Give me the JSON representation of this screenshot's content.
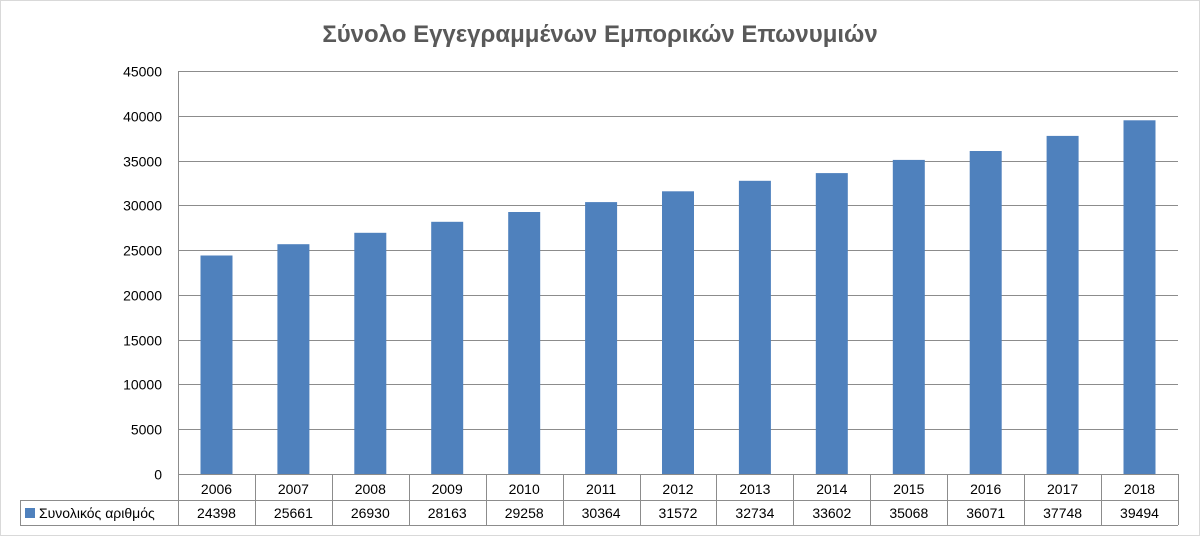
{
  "chart_data": {
    "type": "bar",
    "title": "Σύνολο Εγγεγραμμένων Εμπορικών Επωνυμιών",
    "categories": [
      "2006",
      "2007",
      "2008",
      "2009",
      "2010",
      "2011",
      "2012",
      "2013",
      "2014",
      "2015",
      "2016",
      "2017",
      "2018"
    ],
    "series": [
      {
        "name": "Συνολικός αριθμός",
        "values": [
          24398,
          25661,
          26930,
          28163,
          29258,
          30364,
          31572,
          32734,
          33602,
          35068,
          36071,
          37748,
          39494
        ]
      }
    ],
    "ylim": [
      0,
      45000
    ],
    "yticks": [
      "0",
      "5000",
      "10000",
      "15000",
      "20000",
      "25000",
      "30000",
      "35000",
      "40000",
      "45000"
    ],
    "grid": true,
    "legend": "data-table",
    "colors": {
      "bar": "#4f81bd",
      "grid": "#8c8c8c",
      "title": "#595959",
      "text": "#000000"
    }
  }
}
